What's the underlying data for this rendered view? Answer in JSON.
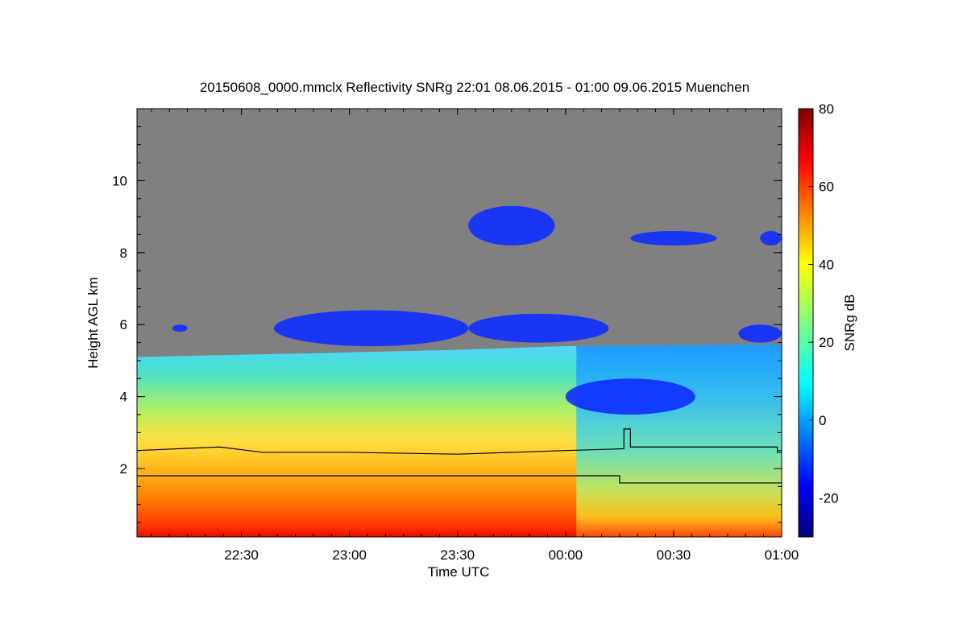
{
  "chart_data": {
    "type": "heatmap",
    "title": "20150608_0000.mmclx Reflectivity SNRg   22:01 08.06.2015 - 01:00 09.06.2015 Muenchen",
    "xlabel": "Time UTC",
    "ylabel": "Height AGL km",
    "x_range_hours": [
      22.0167,
      25.0
    ],
    "x_ticks": [
      {
        "label": "22:30",
        "hours": 22.5
      },
      {
        "label": "23:00",
        "hours": 23.0
      },
      {
        "label": "23:30",
        "hours": 23.5
      },
      {
        "label": "00:00",
        "hours": 24.0
      },
      {
        "label": "00:30",
        "hours": 24.5
      },
      {
        "label": "01:00",
        "hours": 25.0
      }
    ],
    "y_range_km": [
      0.1,
      12.0
    ],
    "y_ticks": [
      {
        "label": "2",
        "km": 2
      },
      {
        "label": "4",
        "km": 4
      },
      {
        "label": "6",
        "km": 6
      },
      {
        "label": "8",
        "km": 8
      },
      {
        "label": "10",
        "km": 10
      }
    ],
    "colorbar": {
      "label": "SNRg dB",
      "range": [
        -30,
        80
      ],
      "ticks": [
        {
          "label": "-20",
          "value": -20
        },
        {
          "label": "0",
          "value": 0
        },
        {
          "label": "20",
          "value": 20
        },
        {
          "label": "40",
          "value": 40
        },
        {
          "label": "60",
          "value": 60
        },
        {
          "label": "80",
          "value": 80
        }
      ],
      "colormap": "jet"
    },
    "background_color": "#808080",
    "layers": {
      "boundary_layer_top_km": [
        {
          "t": 22.0167,
          "h": 2.5
        },
        {
          "t": 22.4,
          "h": 2.6
        },
        {
          "t": 22.6,
          "h": 2.45
        },
        {
          "t": 23.0,
          "h": 2.45
        },
        {
          "t": 23.5,
          "h": 2.4
        },
        {
          "t": 24.0,
          "h": 2.5
        },
        {
          "t": 24.27,
          "h": 2.55
        },
        {
          "t": 24.27,
          "h": 3.1
        },
        {
          "t": 24.3,
          "h": 3.1
        },
        {
          "t": 24.3,
          "h": 2.6
        },
        {
          "t": 24.98,
          "h": 2.6
        },
        {
          "t": 24.98,
          "h": 2.45
        },
        {
          "t": 25.0,
          "h": 2.45
        }
      ],
      "lower_layer_km": [
        {
          "t": 22.0167,
          "h": 1.8
        },
        {
          "t": 24.25,
          "h": 1.8
        },
        {
          "t": 24.25,
          "h": 1.6
        },
        {
          "t": 25.0,
          "h": 1.6
        }
      ],
      "echo_top_km": [
        {
          "t": 22.0167,
          "h": 5.1
        },
        {
          "t": 22.8,
          "h": 5.2
        },
        {
          "t": 23.5,
          "h": 5.3
        },
        {
          "t": 24.0,
          "h": 5.4
        },
        {
          "t": 25.0,
          "h": 5.45
        }
      ]
    },
    "cloud_patches": [
      {
        "name": "cirrus-8-9km-a",
        "t": [
          23.55,
          23.95
        ],
        "h": [
          8.2,
          9.3
        ],
        "snr": -15
      },
      {
        "name": "cirrus-8-9km-b",
        "t": [
          24.3,
          24.7
        ],
        "h": [
          8.2,
          8.6
        ],
        "snr": -15
      },
      {
        "name": "cirrus-8-9km-c",
        "t": [
          24.9,
          25.0
        ],
        "h": [
          8.2,
          8.6
        ],
        "snr": -15
      },
      {
        "name": "midlevel-6km-a",
        "t": [
          22.65,
          23.55
        ],
        "h": [
          5.4,
          6.4
        ],
        "snr": -10
      },
      {
        "name": "midlevel-6km-b",
        "t": [
          23.55,
          24.2
        ],
        "h": [
          5.5,
          6.3
        ],
        "snr": -10
      },
      {
        "name": "midlevel-6km-c",
        "t": [
          24.8,
          25.0
        ],
        "h": [
          5.5,
          6.0
        ],
        "snr": -10
      },
      {
        "name": "small-6km",
        "t": [
          22.18,
          22.25
        ],
        "h": [
          5.8,
          6.0
        ],
        "snr": -10
      },
      {
        "name": "dry-layer-4km",
        "t": [
          24.0,
          24.6
        ],
        "h": [
          3.5,
          4.5
        ],
        "snr": -15
      }
    ]
  }
}
